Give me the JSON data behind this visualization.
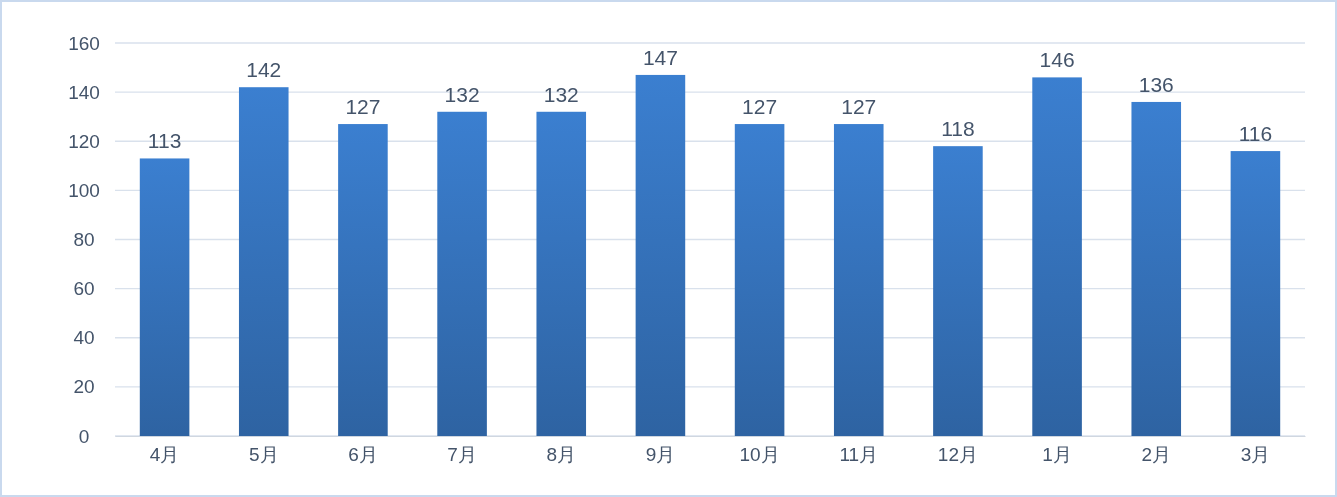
{
  "chart_data": {
    "type": "bar",
    "categories": [
      "4月",
      "5月",
      "6月",
      "7月",
      "8月",
      "9月",
      "10月",
      "11月",
      "12月",
      "1月",
      "2月",
      "3月"
    ],
    "values": [
      113,
      142,
      127,
      132,
      132,
      147,
      127,
      127,
      118,
      146,
      136,
      116
    ],
    "color": "#3b7fd0",
    "ylim": [
      0,
      160
    ],
    "yticks": [
      0,
      20,
      40,
      60,
      80,
      100,
      120,
      140,
      160
    ],
    "grid": "y",
    "data_labels": true
  }
}
